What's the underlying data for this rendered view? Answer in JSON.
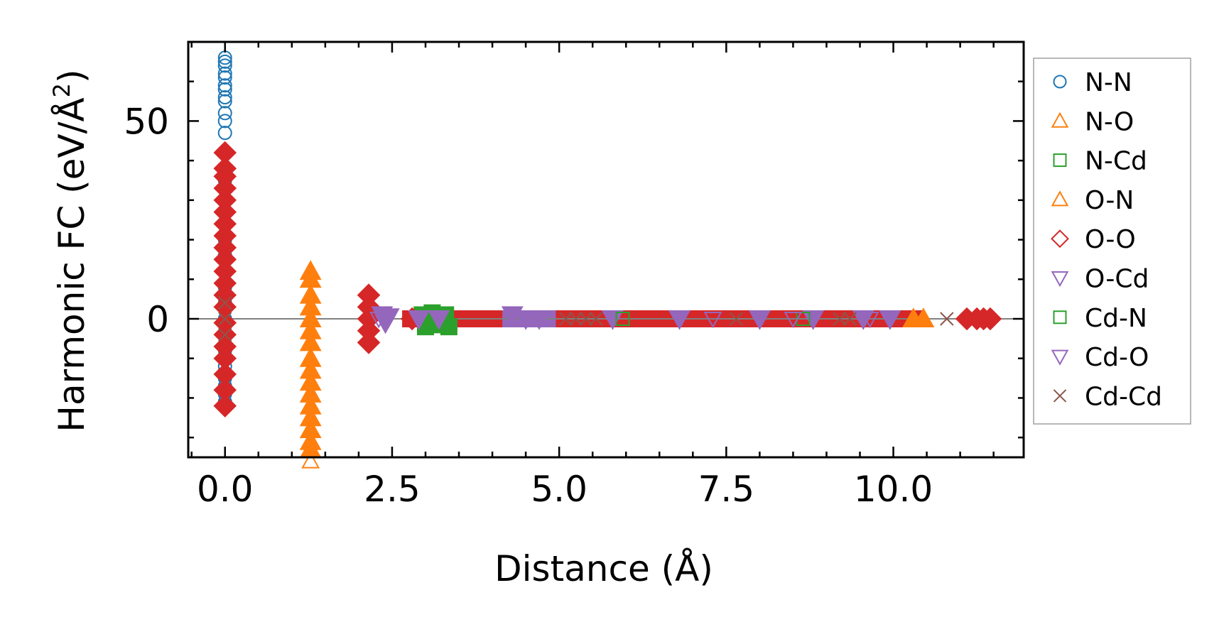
{
  "chart_data": {
    "type": "scatter",
    "title": "",
    "xlabel": "Distance (Å)",
    "ylabel_main": "Harmonic FC (eV/Å",
    "ylabel_sup": "2",
    "ylabel_close": ")",
    "xlim": [
      -0.55,
      11.95
    ],
    "ylim": [
      -35,
      70
    ],
    "xticks": [
      0.0,
      2.5,
      5.0,
      7.5,
      10.0
    ],
    "xtick_labels": [
      "0.0",
      "2.5",
      "5.0",
      "7.5",
      "10.0"
    ],
    "yticks": [
      0,
      50
    ],
    "ytick_labels": [
      "0",
      "50"
    ],
    "x_minor_step": 0.5,
    "y_minor_step": 10,
    "zero_line": true,
    "legend_position": "outside-right",
    "series": [
      {
        "name": "N-N",
        "marker": "circle",
        "color": "#1f77b4",
        "filled": false,
        "points": [
          [
            0,
            66
          ],
          [
            0,
            65
          ],
          [
            0,
            64
          ],
          [
            0,
            62
          ],
          [
            0,
            61
          ],
          [
            0,
            59
          ],
          [
            0,
            58
          ],
          [
            0,
            56
          ],
          [
            0,
            55
          ],
          [
            0,
            52
          ],
          [
            0,
            50
          ],
          [
            0,
            47
          ],
          [
            0,
            35
          ],
          [
            0,
            30
          ],
          [
            0,
            24
          ],
          [
            0,
            20
          ],
          [
            0,
            16
          ],
          [
            0,
            12
          ],
          [
            0,
            8
          ],
          [
            0,
            4
          ],
          [
            0,
            0
          ],
          [
            0,
            -4
          ],
          [
            0,
            -8
          ],
          [
            0,
            -12
          ],
          [
            0,
            -15
          ],
          [
            0,
            -17
          ],
          [
            0,
            -19
          ],
          [
            0,
            -21
          ]
        ]
      },
      {
        "name": "N-O",
        "marker": "triangle-up",
        "color": "#ff7f0e",
        "filled": true,
        "points": [
          [
            1.28,
            12
          ],
          [
            1.28,
            10
          ],
          [
            1.28,
            6
          ],
          [
            1.28,
            3
          ],
          [
            1.28,
            0
          ],
          [
            1.28,
            -3
          ],
          [
            1.28,
            -6
          ],
          [
            1.28,
            -10
          ],
          [
            1.28,
            -13
          ],
          [
            1.28,
            -16
          ],
          [
            1.28,
            -19
          ],
          [
            1.28,
            -22
          ],
          [
            1.28,
            -25
          ],
          [
            1.28,
            -28
          ],
          [
            1.28,
            -31
          ],
          [
            1.28,
            -33
          ],
          [
            10.3,
            0
          ],
          [
            10.45,
            0
          ]
        ]
      },
      {
        "name": "N-Cd",
        "marker": "square",
        "color": "#2ca02c",
        "filled": true,
        "points": [
          [
            2.95,
            1
          ],
          [
            3.0,
            -2
          ],
          [
            3.1,
            1.5
          ],
          [
            3.2,
            -1.5
          ],
          [
            3.3,
            1
          ],
          [
            3.35,
            -2
          ]
        ]
      },
      {
        "name": "O-N",
        "marker": "triangle-up",
        "color": "#ff7f0e",
        "filled": false,
        "points": [
          [
            1.28,
            -36
          ]
        ]
      },
      {
        "name": "O-O",
        "marker": "diamond",
        "color": "#d62728",
        "filled": true,
        "points": [
          [
            0,
            42
          ],
          [
            0,
            38
          ],
          [
            0,
            36
          ],
          [
            0,
            33
          ],
          [
            0,
            30
          ],
          [
            0,
            27
          ],
          [
            0,
            24
          ],
          [
            0,
            21
          ],
          [
            0,
            18
          ],
          [
            0,
            15
          ],
          [
            0,
            12
          ],
          [
            0,
            9
          ],
          [
            0,
            6
          ],
          [
            0,
            3
          ],
          [
            0,
            -1
          ],
          [
            0,
            -4
          ],
          [
            0,
            -7
          ],
          [
            0,
            -10
          ],
          [
            0,
            -14
          ],
          [
            0,
            -18
          ],
          [
            0,
            -22
          ],
          [
            2.15,
            6
          ],
          [
            2.15,
            3
          ],
          [
            2.15,
            0
          ],
          [
            2.15,
            -3
          ],
          [
            2.15,
            -6
          ],
          [
            2.8,
            0
          ],
          [
            11.1,
            0
          ],
          [
            11.25,
            0
          ],
          [
            11.35,
            0
          ],
          [
            11.45,
            0
          ]
        ]
      },
      {
        "name": "O-Cd",
        "marker": "triangle-down",
        "color": "#9467bd",
        "filled": true,
        "points": [
          [
            2.35,
            1
          ],
          [
            2.4,
            -1
          ],
          [
            2.45,
            0.5
          ],
          [
            2.9,
            0
          ],
          [
            3.2,
            0
          ],
          [
            4.3,
            1
          ],
          [
            4.5,
            0
          ],
          [
            4.7,
            0
          ],
          [
            5.8,
            0
          ],
          [
            6.8,
            0
          ],
          [
            8.0,
            0
          ],
          [
            8.8,
            0
          ],
          [
            9.55,
            0
          ],
          [
            9.95,
            0
          ]
        ]
      },
      {
        "name": "Cd-N",
        "marker": "square",
        "color": "#2ca02c",
        "filled": false,
        "points": [
          [
            5.95,
            0
          ],
          [
            8.65,
            0
          ]
        ]
      },
      {
        "name": "Cd-O",
        "marker": "triangle-down",
        "color": "#9467bd",
        "filled": false,
        "points": [
          [
            2.3,
            0
          ],
          [
            7.3,
            0
          ],
          [
            8.5,
            0
          ],
          [
            9.65,
            0
          ]
        ]
      },
      {
        "name": "Cd-Cd",
        "marker": "x",
        "color": "#8c564b",
        "filled": false,
        "points": [
          [
            0,
            0
          ],
          [
            0,
            4
          ],
          [
            0,
            -4
          ],
          [
            5.1,
            0
          ],
          [
            5.25,
            0
          ],
          [
            5.4,
            0
          ],
          [
            5.55,
            0
          ],
          [
            7.65,
            0
          ],
          [
            9.2,
            0
          ],
          [
            9.35,
            0
          ],
          [
            10.8,
            0
          ]
        ]
      }
    ],
    "bands": [
      {
        "name": "O-O",
        "color": "#d62728",
        "x_start": 2.65,
        "x_end": 10.45
      },
      {
        "name": "O-Cd",
        "color": "#9467bd",
        "x_start": 4.15,
        "x_end": 4.95
      }
    ]
  }
}
